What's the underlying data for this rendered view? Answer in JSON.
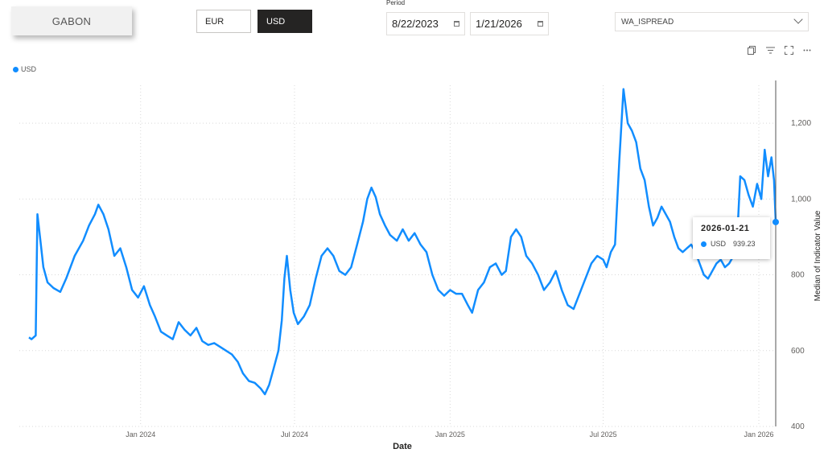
{
  "header": {
    "country": "GABON",
    "currencies": [
      {
        "label": "EUR",
        "selected": false
      },
      {
        "label": "USD",
        "selected": true
      }
    ],
    "period_label": "Period",
    "period_start": "8/22/2023",
    "period_end": "1/21/2026",
    "indicator": "WA_ISPREAD"
  },
  "toolbar": {
    "icons": [
      "copy-icon",
      "filter-icon",
      "focus-mode-icon",
      "more-options-icon"
    ]
  },
  "tooltip": {
    "date": "2026-01-21",
    "series": "USD",
    "value": "939.23"
  },
  "colors": {
    "series": "#118dff",
    "grid": "#d9d9d9"
  },
  "chart_data": {
    "type": "line",
    "xlabel": "Date",
    "ylabel": "Median of Indicator Value",
    "x_ticks": [
      "Jan 2024",
      "Jul 2024",
      "Jan 2025",
      "Jul 2025",
      "Jan 2026"
    ],
    "y_ticks": [
      "400",
      "600",
      "800",
      "1,000",
      "1,200"
    ],
    "ylim": [
      400,
      1300
    ],
    "xlim": [
      "2023-08-22",
      "2026-01-21"
    ],
    "grid": true,
    "legend_position": "top-left",
    "series": [
      {
        "name": "USD",
        "points": [
          [
            "2023-08-22",
            635
          ],
          [
            "2023-08-25",
            630
          ],
          [
            "2023-08-30",
            640
          ],
          [
            "2023-09-01",
            960
          ],
          [
            "2023-09-04",
            900
          ],
          [
            "2023-09-08",
            820
          ],
          [
            "2023-09-13",
            780
          ],
          [
            "2023-09-20",
            765
          ],
          [
            "2023-09-28",
            755
          ],
          [
            "2023-10-05",
            790
          ],
          [
            "2023-10-15",
            850
          ],
          [
            "2023-10-25",
            890
          ],
          [
            "2023-11-01",
            930
          ],
          [
            "2023-11-08",
            960
          ],
          [
            "2023-11-12",
            985
          ],
          [
            "2023-11-18",
            960
          ],
          [
            "2023-11-24",
            920
          ],
          [
            "2023-12-01",
            850
          ],
          [
            "2023-12-08",
            870
          ],
          [
            "2023-12-15",
            820
          ],
          [
            "2023-12-22",
            760
          ],
          [
            "2023-12-29",
            740
          ],
          [
            "2024-01-05",
            770
          ],
          [
            "2024-01-12",
            720
          ],
          [
            "2024-01-18",
            690
          ],
          [
            "2024-01-25",
            650
          ],
          [
            "2024-02-01",
            640
          ],
          [
            "2024-02-08",
            630
          ],
          [
            "2024-02-15",
            675
          ],
          [
            "2024-02-22",
            655
          ],
          [
            "2024-02-29",
            640
          ],
          [
            "2024-03-07",
            660
          ],
          [
            "2024-03-14",
            625
          ],
          [
            "2024-03-21",
            615
          ],
          [
            "2024-03-28",
            620
          ],
          [
            "2024-04-04",
            610
          ],
          [
            "2024-04-11",
            600
          ],
          [
            "2024-04-18",
            590
          ],
          [
            "2024-04-25",
            570
          ],
          [
            "2024-05-01",
            540
          ],
          [
            "2024-05-08",
            520
          ],
          [
            "2024-05-15",
            515
          ],
          [
            "2024-05-22",
            500
          ],
          [
            "2024-05-27",
            485
          ],
          [
            "2024-06-01",
            510
          ],
          [
            "2024-06-06",
            550
          ],
          [
            "2024-06-12",
            600
          ],
          [
            "2024-06-16",
            680
          ],
          [
            "2024-06-19",
            790
          ],
          [
            "2024-06-22",
            850
          ],
          [
            "2024-06-26",
            760
          ],
          [
            "2024-06-30",
            700
          ],
          [
            "2024-07-05",
            670
          ],
          [
            "2024-07-12",
            690
          ],
          [
            "2024-07-19",
            720
          ],
          [
            "2024-07-26",
            790
          ],
          [
            "2024-08-02",
            850
          ],
          [
            "2024-08-09",
            870
          ],
          [
            "2024-08-16",
            850
          ],
          [
            "2024-08-23",
            810
          ],
          [
            "2024-08-30",
            800
          ],
          [
            "2024-09-06",
            820
          ],
          [
            "2024-09-13",
            880
          ],
          [
            "2024-09-20",
            940
          ],
          [
            "2024-09-25",
            1000
          ],
          [
            "2024-09-30",
            1030
          ],
          [
            "2024-10-05",
            1005
          ],
          [
            "2024-10-10",
            960
          ],
          [
            "2024-10-16",
            930
          ],
          [
            "2024-10-22",
            905
          ],
          [
            "2024-10-30",
            890
          ],
          [
            "2024-11-06",
            920
          ],
          [
            "2024-11-13",
            890
          ],
          [
            "2024-11-20",
            910
          ],
          [
            "2024-11-27",
            880
          ],
          [
            "2024-12-04",
            860
          ],
          [
            "2024-12-11",
            800
          ],
          [
            "2024-12-18",
            760
          ],
          [
            "2024-12-25",
            745
          ],
          [
            "2025-01-01",
            760
          ],
          [
            "2025-01-08",
            750
          ],
          [
            "2025-01-15",
            750
          ],
          [
            "2025-01-22",
            720
          ],
          [
            "2025-01-27",
            700
          ],
          [
            "2025-02-03",
            760
          ],
          [
            "2025-02-10",
            780
          ],
          [
            "2025-02-17",
            820
          ],
          [
            "2025-02-24",
            830
          ],
          [
            "2025-03-03",
            800
          ],
          [
            "2025-03-08",
            810
          ],
          [
            "2025-03-14",
            900
          ],
          [
            "2025-03-20",
            920
          ],
          [
            "2025-03-26",
            900
          ],
          [
            "2025-04-01",
            850
          ],
          [
            "2025-04-08",
            830
          ],
          [
            "2025-04-15",
            800
          ],
          [
            "2025-04-22",
            760
          ],
          [
            "2025-04-29",
            780
          ],
          [
            "2025-05-06",
            810
          ],
          [
            "2025-05-13",
            760
          ],
          [
            "2025-05-20",
            720
          ],
          [
            "2025-05-27",
            710
          ],
          [
            "2025-06-03",
            750
          ],
          [
            "2025-06-10",
            790
          ],
          [
            "2025-06-17",
            830
          ],
          [
            "2025-06-24",
            850
          ],
          [
            "2025-07-01",
            840
          ],
          [
            "2025-07-05",
            820
          ],
          [
            "2025-07-10",
            860
          ],
          [
            "2025-07-15",
            880
          ],
          [
            "2025-07-20",
            1100
          ],
          [
            "2025-07-25",
            1290
          ],
          [
            "2025-07-30",
            1200
          ],
          [
            "2025-08-04",
            1180
          ],
          [
            "2025-08-09",
            1150
          ],
          [
            "2025-08-14",
            1080
          ],
          [
            "2025-08-19",
            1050
          ],
          [
            "2025-08-24",
            980
          ],
          [
            "2025-08-29",
            930
          ],
          [
            "2025-09-03",
            950
          ],
          [
            "2025-09-08",
            980
          ],
          [
            "2025-09-13",
            960
          ],
          [
            "2025-09-18",
            940
          ],
          [
            "2025-09-23",
            900
          ],
          [
            "2025-09-28",
            870
          ],
          [
            "2025-10-03",
            860
          ],
          [
            "2025-10-08",
            870
          ],
          [
            "2025-10-13",
            880
          ],
          [
            "2025-10-18",
            860
          ],
          [
            "2025-10-23",
            830
          ],
          [
            "2025-10-28",
            800
          ],
          [
            "2025-11-02",
            790
          ],
          [
            "2025-11-07",
            810
          ],
          [
            "2025-11-12",
            830
          ],
          [
            "2025-11-17",
            840
          ],
          [
            "2025-11-22",
            820
          ],
          [
            "2025-11-27",
            830
          ],
          [
            "2025-12-02",
            850
          ],
          [
            "2025-12-06",
            880
          ],
          [
            "2025-12-10",
            1060
          ],
          [
            "2025-12-15",
            1050
          ],
          [
            "2025-12-20",
            1010
          ],
          [
            "2025-12-25",
            980
          ],
          [
            "2025-12-30",
            1040
          ],
          [
            "2026-01-04",
            1000
          ],
          [
            "2026-01-08",
            1130
          ],
          [
            "2026-01-12",
            1060
          ],
          [
            "2026-01-16",
            1110
          ],
          [
            "2026-01-19",
            1050
          ],
          [
            "2026-01-21",
            939.23
          ]
        ]
      }
    ]
  }
}
